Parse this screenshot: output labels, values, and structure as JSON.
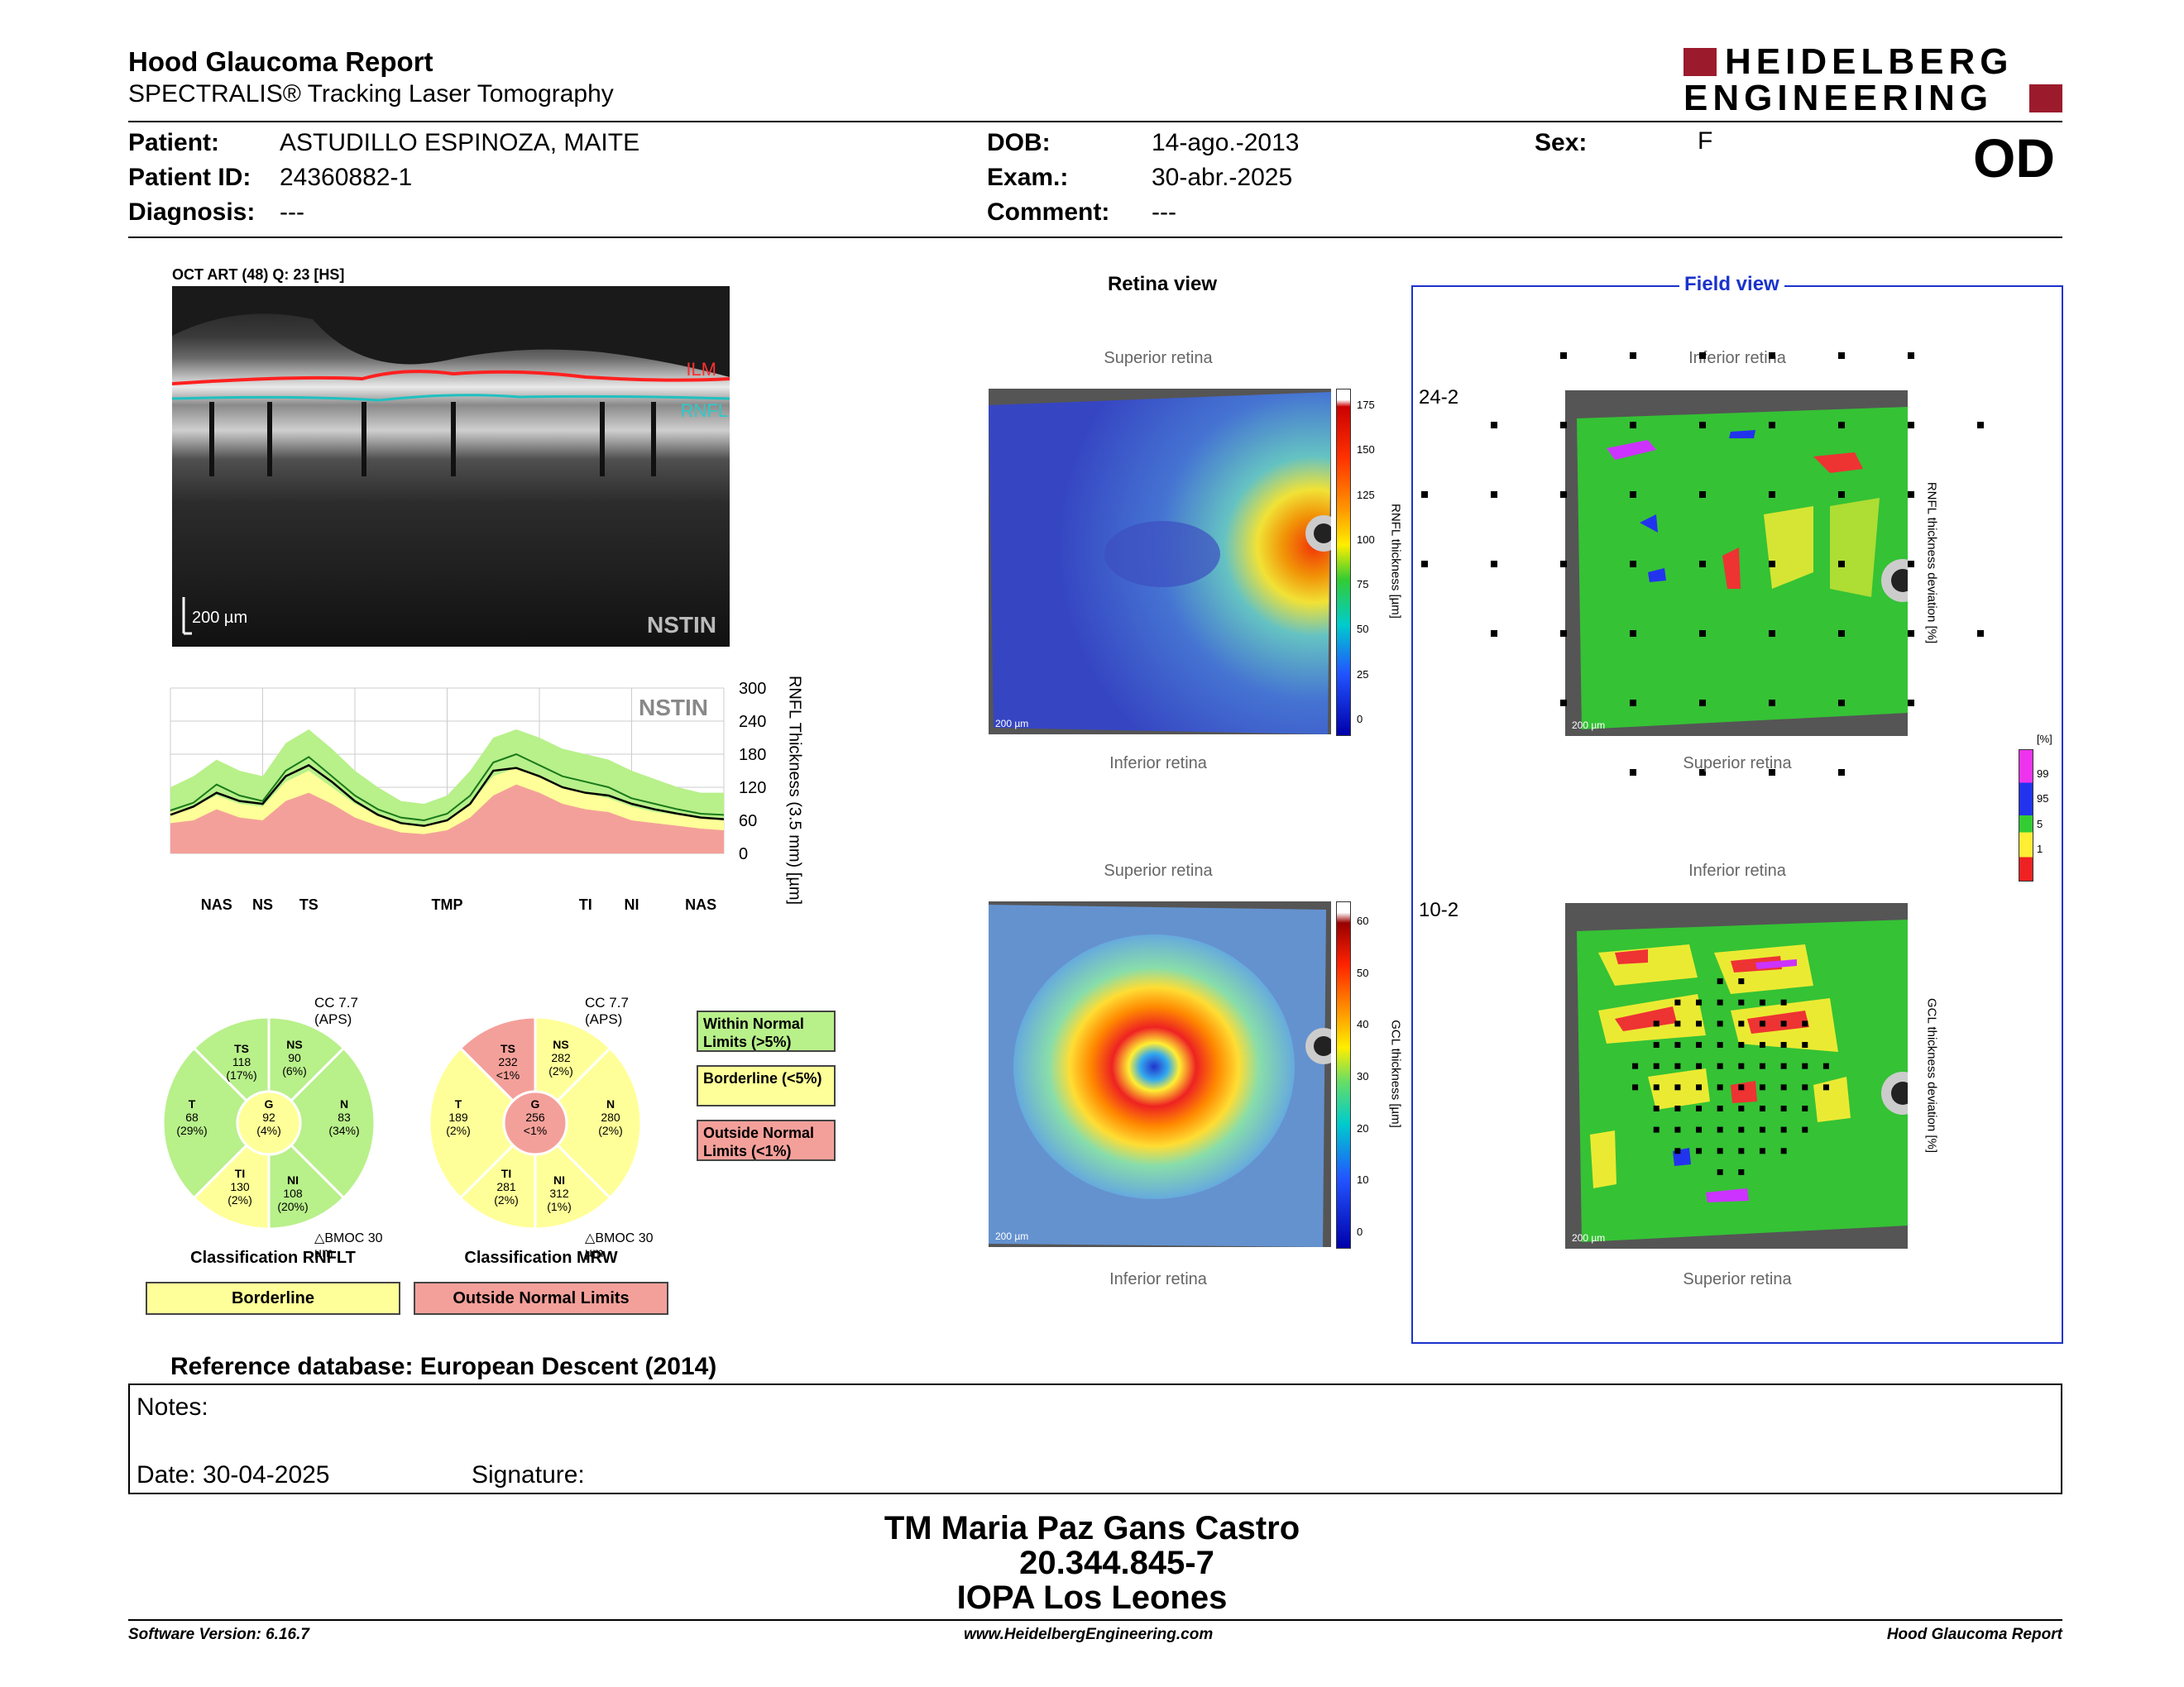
{
  "header": {
    "title": "Hood Glaucoma Report",
    "subtitle": "SPECTRALIS® Tracking Laser Tomography",
    "logo_line1": "HEIDELBERG",
    "logo_line2": "ENGINEERING"
  },
  "patient": {
    "patient_label": "Patient:",
    "patient_value": "ASTUDILLO ESPINOZA, MAITE",
    "id_label": "Patient ID:",
    "id_value": "24360882-1",
    "diagnosis_label": "Diagnosis:",
    "diagnosis_value": "---",
    "dob_label": "DOB:",
    "dob_value": "14-ago.-2013",
    "exam_label": "Exam.:",
    "exam_value": "30-abr.-2025",
    "comment_label": "Comment:",
    "comment_value": "---",
    "sex_label": "Sex:",
    "sex_value": "F",
    "eye": "OD"
  },
  "oct": {
    "title": "OCT ART (48) Q: 23 [HS]",
    "ilm": "ILM",
    "rnfl": "RNFL",
    "scale": "200 µm",
    "orientation": "NSTIN"
  },
  "chart_data": {
    "type": "area",
    "orientation_label": "NSTIN",
    "ylabel": "RNFL Thickness (3.5 mm) [µm]",
    "ylim": [
      0,
      300
    ],
    "yticks": [
      "300",
      "240",
      "180",
      "120",
      "60",
      "0"
    ],
    "xticks": [
      "NAS",
      "NS",
      "TS",
      "TMP",
      "TI",
      "NI",
      "NAS"
    ],
    "x": [
      0,
      15,
      30,
      45,
      60,
      75,
      90,
      105,
      120,
      135,
      150,
      165,
      180,
      195,
      210,
      225,
      240,
      255,
      270,
      285,
      300,
      315,
      330,
      345,
      360
    ],
    "series": [
      {
        "values": [
          78,
          92,
          125,
          105,
          95,
          150,
          175,
          140,
          105,
          80,
          65,
          60,
          72,
          105,
          165,
          180,
          160,
          140,
          130,
          120,
          100,
          90,
          80,
          72,
          70
        ]
      },
      {
        "values": [
          70,
          85,
          110,
          95,
          90,
          140,
          160,
          130,
          95,
          70,
          55,
          50,
          60,
          90,
          150,
          155,
          140,
          120,
          110,
          105,
          90,
          80,
          72,
          65,
          62
        ]
      }
    ],
    "bands": {
      "green_upper": [
        120,
        140,
        170,
        150,
        140,
        200,
        225,
        190,
        150,
        120,
        95,
        90,
        105,
        150,
        210,
        225,
        210,
        190,
        180,
        170,
        150,
        135,
        120,
        110,
        110
      ],
      "yellow_upper": [
        75,
        85,
        105,
        90,
        85,
        130,
        150,
        120,
        90,
        70,
        55,
        50,
        60,
        90,
        140,
        155,
        140,
        120,
        110,
        100,
        85,
        75,
        70,
        65,
        60
      ],
      "red_upper": [
        55,
        60,
        80,
        65,
        60,
        95,
        110,
        90,
        65,
        50,
        38,
        35,
        42,
        65,
        105,
        125,
        110,
        90,
        80,
        75,
        60,
        55,
        50,
        45,
        42
      ]
    }
  },
  "rnfl_circle": {
    "header": "CC 7.7 (APS)",
    "title": "Classification RNFLT",
    "bmo": "BMOC 30 µm",
    "sectors": {
      "TS": {
        "label": "TS",
        "value": "118",
        "pct": "(17%)"
      },
      "NS": {
        "label": "NS",
        "value": "90",
        "pct": "(6%)"
      },
      "T": {
        "label": "T",
        "value": "68",
        "pct": "(29%)"
      },
      "G": {
        "label": "G",
        "value": "92",
        "pct": "(4%)"
      },
      "N": {
        "label": "N",
        "value": "83",
        "pct": "(34%)"
      },
      "TI": {
        "label": "TI",
        "value": "130",
        "pct": "(2%)"
      },
      "NI": {
        "label": "NI",
        "value": "108",
        "pct": "(20%)"
      }
    },
    "status": "Borderline"
  },
  "mrw_circle": {
    "header": "CC 7.7 (APS)",
    "title": "Classification MRW",
    "bmo": "BMOC 30 µm",
    "sectors": {
      "TS": {
        "label": "TS",
        "value": "232",
        "pct": "<1%"
      },
      "NS": {
        "label": "NS",
        "value": "282",
        "pct": "(2%)"
      },
      "T": {
        "label": "T",
        "value": "189",
        "pct": "(2%)"
      },
      "G": {
        "label": "G",
        "value": "256",
        "pct": "<1%"
      },
      "N": {
        "label": "N",
        "value": "280",
        "pct": "(2%)"
      },
      "TI": {
        "label": "TI",
        "value": "281",
        "pct": "(2%)"
      },
      "NI": {
        "label": "NI",
        "value": "312",
        "pct": "(1%)"
      }
    },
    "status": "Outside Normal Limits"
  },
  "legend": {
    "within": "Within Normal Limits (>5%)",
    "borderline": "Borderline (<5%)",
    "outside": "Outside Normal Limits (<1%)",
    "color_green": "#b8f08a",
    "color_yellow": "#ffff99",
    "color_red": "#f4a09a"
  },
  "retina_view": {
    "title": "Retina view",
    "superior": "Superior retina",
    "inferior": "Inferior retina",
    "scale": "200 µm",
    "rnfl_axis": "RNFL thickness [µm]",
    "rnfl_ticks": [
      "175",
      "150",
      "125",
      "100",
      "75",
      "50",
      "25",
      "0"
    ],
    "gcl_axis": "GCL thickness [µm]",
    "gcl_ticks": [
      "60",
      "50",
      "40",
      "30",
      "20",
      "10",
      "0"
    ]
  },
  "field_view": {
    "title": "Field view",
    "inferior": "Inferior retina",
    "superior": "Superior retina",
    "label_24": "24-2",
    "label_10": "10-2",
    "scale": "200 µm",
    "rnfl_dev": "RNFL thickness deviation [%]",
    "gcl_dev": "GCL thickness deviation [%]",
    "pct_unit": "[%]",
    "pct_ticks": [
      "99",
      "95",
      "5",
      "1"
    ]
  },
  "reference": "Reference database: European Descent (2014)",
  "notes": {
    "notes_label": "Notes:",
    "date_label": "Date: 30-04-2025",
    "signature_label": "Signature:"
  },
  "signature": {
    "name": "TM Maria Paz Gans Castro",
    "id": "20.344.845-7",
    "place": "IOPA Los Leones"
  },
  "footer": {
    "version": "Software Version: 6.16.7",
    "url": "www.HeidelbergEngineering.com",
    "report": "Hood Glaucoma Report"
  }
}
